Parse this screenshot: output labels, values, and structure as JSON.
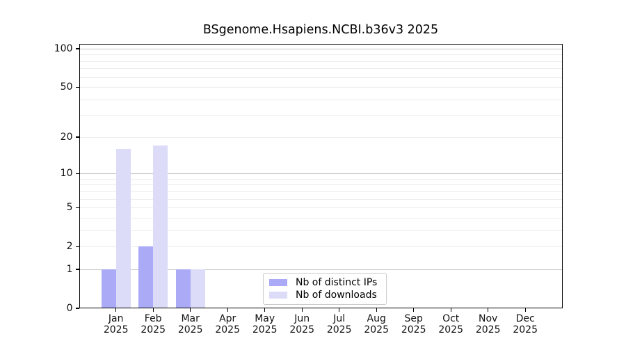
{
  "title": "BSgenome.Hsapiens.NCBI.b36v3 2025",
  "colors": {
    "distinct_ips_bar": "#aaaaf6",
    "downloads_bar": "#dcdcf8",
    "grid_major": "#c6c6c6",
    "grid_minor": "#ededed",
    "axis_frame": "#000000",
    "legend_border": "#cccccc",
    "background": "#ffffff"
  },
  "chart_data": {
    "type": "bar",
    "title": "BSgenome.Hsapiens.NCBI.b36v3 2025",
    "xlabel": "",
    "ylabel": "",
    "yscale": "log1p",
    "ylim": [
      0,
      110
    ],
    "categories": [
      "Jan 2025",
      "Feb 2025",
      "Mar 2025",
      "Apr 2025",
      "May 2025",
      "Jun 2025",
      "Jul 2025",
      "Aug 2025",
      "Sep 2025",
      "Oct 2025",
      "Nov 2025",
      "Dec 2025"
    ],
    "series": [
      {
        "name": "Nb of distinct IPs",
        "color": "#aaaaf6",
        "values": [
          1,
          2,
          1,
          0,
          0,
          0,
          0,
          0,
          0,
          0,
          0,
          0
        ]
      },
      {
        "name": "Nb of downloads",
        "color": "#dcdcf8",
        "values": [
          16,
          17,
          1,
          0,
          0,
          0,
          0,
          0,
          0,
          0,
          0,
          0
        ]
      }
    ],
    "yticks": [
      0,
      1,
      2,
      5,
      10,
      20,
      50,
      100
    ],
    "grid": {
      "major": [
        1,
        10,
        100
      ],
      "minor": [
        2,
        3,
        4,
        5,
        6,
        7,
        8,
        9,
        20,
        30,
        40,
        50,
        60,
        70,
        80,
        90
      ]
    },
    "legend": {
      "position": "lower center",
      "entries": [
        "Nb of distinct IPs",
        "Nb of downloads"
      ]
    }
  }
}
